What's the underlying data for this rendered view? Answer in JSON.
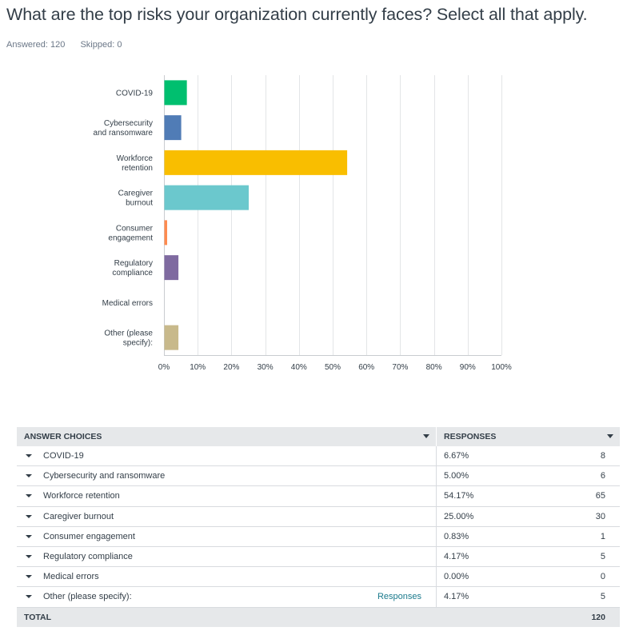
{
  "question": {
    "title": "What are the top risks your organization currently faces? Select all that apply.",
    "answered": "Answered: 120",
    "skipped": "Skipped: 0"
  },
  "chart_data": {
    "type": "bar",
    "orientation": "horizontal",
    "categories": [
      [
        "COVID-19"
      ],
      [
        "Cybersecurity",
        "and ransomware"
      ],
      [
        "Workforce",
        "retention"
      ],
      [
        "Caregiver",
        "burnout"
      ],
      [
        "Consumer",
        "engagement"
      ],
      [
        "Regulatory",
        "compliance"
      ],
      [
        "Medical errors"
      ],
      [
        "Other (please",
        "specify):"
      ]
    ],
    "values": [
      6.67,
      5.0,
      54.17,
      25.0,
      0.83,
      4.17,
      0.0,
      4.17
    ],
    "colors": [
      "#00bf6f",
      "#507cb6",
      "#f9be00",
      "#6bc8cd",
      "#ff8b4f",
      "#7f6aa0",
      "#d25f90",
      "#c8b98b"
    ],
    "xlim": [
      0,
      100
    ],
    "xticks": [
      "0%",
      "10%",
      "20%",
      "30%",
      "40%",
      "50%",
      "60%",
      "70%",
      "80%",
      "90%",
      "100%"
    ],
    "grid": true
  },
  "table": {
    "col_choices": "ANSWER CHOICES",
    "col_responses": "RESPONSES",
    "rows": [
      {
        "label": "COVID-19",
        "pct": "6.67%",
        "count": "8"
      },
      {
        "label": "Cybersecurity and ransomware",
        "pct": "5.00%",
        "count": "6"
      },
      {
        "label": "Workforce retention",
        "pct": "54.17%",
        "count": "65"
      },
      {
        "label": "Caregiver burnout",
        "pct": "25.00%",
        "count": "30"
      },
      {
        "label": "Consumer engagement",
        "pct": "0.83%",
        "count": "1"
      },
      {
        "label": "Regulatory compliance",
        "pct": "4.17%",
        "count": "5"
      },
      {
        "label": "Medical errors",
        "pct": "0.00%",
        "count": "0"
      },
      {
        "label": "Other (please specify):",
        "pct": "4.17%",
        "count": "5",
        "link": "Responses"
      }
    ],
    "total_label": "TOTAL",
    "total_value": "120"
  }
}
